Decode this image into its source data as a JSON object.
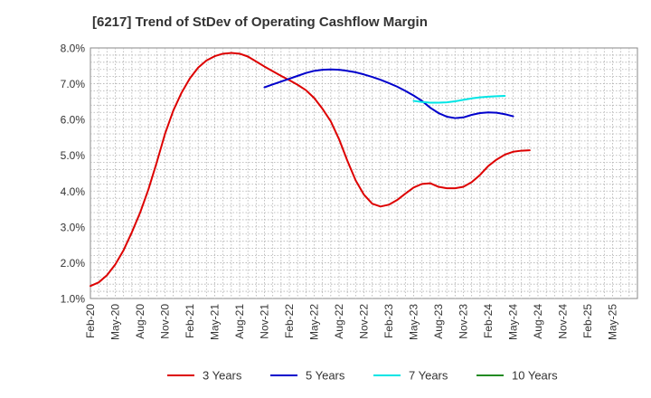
{
  "chart_data": {
    "type": "line",
    "title": "[6217]  Trend of StDev of Operating Cashflow Margin",
    "xlabel": "",
    "ylabel": "",
    "x": [
      "Feb-20",
      "May-20",
      "Aug-20",
      "Nov-20",
      "Feb-21",
      "May-21",
      "Aug-21",
      "Nov-21",
      "Feb-22",
      "May-22",
      "Aug-22",
      "Nov-22",
      "Feb-23",
      "May-23",
      "Aug-23",
      "Nov-23",
      "Feb-24",
      "May-24",
      "Aug-24",
      "Nov-24",
      "Feb-25",
      "May-25"
    ],
    "ylim": [
      1.0,
      8.0
    ],
    "y_ticks": [
      "1.0%",
      "2.0%",
      "3.0%",
      "4.0%",
      "5.0%",
      "6.0%",
      "7.0%",
      "8.0%"
    ],
    "y_tick_values": [
      1.0,
      2.0,
      3.0,
      4.0,
      5.0,
      6.0,
      7.0,
      8.0
    ],
    "grid": true,
    "legend_position": "bottom",
    "series": [
      {
        "name": "3 Years",
        "color": "#dd0000",
        "points": [
          [
            "Feb-20",
            1.35
          ],
          [
            "Mar-20",
            1.45
          ],
          [
            "Apr-20",
            1.65
          ],
          [
            "May-20",
            1.95
          ],
          [
            "Jun-20",
            2.35
          ],
          [
            "Jul-20",
            2.85
          ],
          [
            "Aug-20",
            3.4
          ],
          [
            "Sep-20",
            4.05
          ],
          [
            "Oct-20",
            4.8
          ],
          [
            "Nov-20",
            5.6
          ],
          [
            "Dec-20",
            6.25
          ],
          [
            "Jan-21",
            6.75
          ],
          [
            "Feb-21",
            7.15
          ],
          [
            "Mar-21",
            7.45
          ],
          [
            "Apr-21",
            7.65
          ],
          [
            "May-21",
            7.77
          ],
          [
            "Jun-21",
            7.84
          ],
          [
            "Jul-21",
            7.86
          ],
          [
            "Aug-21",
            7.84
          ],
          [
            "Sep-21",
            7.76
          ],
          [
            "Oct-21",
            7.62
          ],
          [
            "Nov-21",
            7.48
          ],
          [
            "Dec-21",
            7.35
          ],
          [
            "Jan-22",
            7.22
          ],
          [
            "Feb-22",
            7.1
          ],
          [
            "Mar-22",
            6.97
          ],
          [
            "Apr-22",
            6.82
          ],
          [
            "May-22",
            6.6
          ],
          [
            "Jun-22",
            6.3
          ],
          [
            "Jul-22",
            5.95
          ],
          [
            "Aug-22",
            5.45
          ],
          [
            "Sep-22",
            4.85
          ],
          [
            "Oct-22",
            4.3
          ],
          [
            "Nov-22",
            3.9
          ],
          [
            "Dec-22",
            3.65
          ],
          [
            "Jan-23",
            3.57
          ],
          [
            "Feb-23",
            3.62
          ],
          [
            "Mar-23",
            3.75
          ],
          [
            "Apr-23",
            3.93
          ],
          [
            "May-23",
            4.1
          ],
          [
            "Jun-23",
            4.2
          ],
          [
            "Jul-23",
            4.22
          ],
          [
            "Aug-23",
            4.12
          ],
          [
            "Sep-23",
            4.08
          ],
          [
            "Oct-23",
            4.08
          ],
          [
            "Nov-23",
            4.12
          ],
          [
            "Dec-23",
            4.25
          ],
          [
            "Jan-24",
            4.45
          ],
          [
            "Feb-24",
            4.7
          ],
          [
            "Mar-24",
            4.88
          ],
          [
            "Apr-24",
            5.02
          ],
          [
            "May-24",
            5.1
          ],
          [
            "Jun-24",
            5.13
          ],
          [
            "Jul-24",
            5.14
          ]
        ]
      },
      {
        "name": "5 Years",
        "color": "#0000cc",
        "points": [
          [
            "Nov-21",
            6.9
          ],
          [
            "Dec-21",
            6.98
          ],
          [
            "Jan-22",
            7.06
          ],
          [
            "Feb-22",
            7.14
          ],
          [
            "Mar-22",
            7.22
          ],
          [
            "Apr-22",
            7.3
          ],
          [
            "May-22",
            7.36
          ],
          [
            "Jun-22",
            7.39
          ],
          [
            "Jul-22",
            7.4
          ],
          [
            "Aug-22",
            7.39
          ],
          [
            "Sep-22",
            7.36
          ],
          [
            "Oct-22",
            7.32
          ],
          [
            "Nov-22",
            7.26
          ],
          [
            "Dec-22",
            7.19
          ],
          [
            "Jan-23",
            7.11
          ],
          [
            "Feb-23",
            7.02
          ],
          [
            "Mar-23",
            6.92
          ],
          [
            "Apr-23",
            6.8
          ],
          [
            "May-23",
            6.67
          ],
          [
            "Jun-23",
            6.52
          ],
          [
            "Jul-23",
            6.33
          ],
          [
            "Aug-23",
            6.18
          ],
          [
            "Sep-23",
            6.08
          ],
          [
            "Oct-23",
            6.04
          ],
          [
            "Nov-23",
            6.06
          ],
          [
            "Dec-23",
            6.13
          ],
          [
            "Jan-24",
            6.18
          ],
          [
            "Feb-24",
            6.2
          ],
          [
            "Mar-24",
            6.19
          ],
          [
            "Apr-24",
            6.15
          ],
          [
            "May-24",
            6.09
          ]
        ]
      },
      {
        "name": "7 Years",
        "color": "#00e5e5",
        "points": [
          [
            "May-23",
            6.52
          ],
          [
            "Jun-23",
            6.49
          ],
          [
            "Jul-23",
            6.47
          ],
          [
            "Aug-23",
            6.47
          ],
          [
            "Sep-23",
            6.48
          ],
          [
            "Oct-23",
            6.51
          ],
          [
            "Nov-23",
            6.55
          ],
          [
            "Dec-23",
            6.59
          ],
          [
            "Jan-24",
            6.62
          ],
          [
            "Feb-24",
            6.64
          ],
          [
            "Mar-24",
            6.65
          ],
          [
            "Apr-24",
            6.66
          ]
        ]
      },
      {
        "name": "10 Years",
        "color": "#228b22",
        "points": []
      }
    ]
  }
}
